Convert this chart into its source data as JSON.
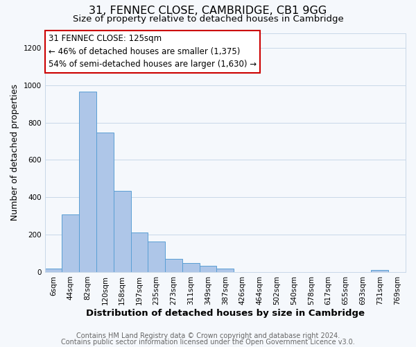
{
  "title": "31, FENNEC CLOSE, CAMBRIDGE, CB1 9GG",
  "subtitle": "Size of property relative to detached houses in Cambridge",
  "xlabel": "Distribution of detached houses by size in Cambridge",
  "ylabel": "Number of detached properties",
  "bin_labels": [
    "6sqm",
    "44sqm",
    "82sqm",
    "120sqm",
    "158sqm",
    "197sqm",
    "235sqm",
    "273sqm",
    "311sqm",
    "349sqm",
    "387sqm",
    "426sqm",
    "464sqm",
    "502sqm",
    "540sqm",
    "578sqm",
    "617sqm",
    "655sqm",
    "693sqm",
    "731sqm",
    "769sqm"
  ],
  "bar_heights": [
    20,
    310,
    965,
    745,
    435,
    212,
    163,
    72,
    47,
    32,
    17,
    0,
    0,
    0,
    0,
    0,
    0,
    0,
    0,
    10,
    0
  ],
  "bar_color": "#aec6e8",
  "bar_edge_color": "#5a9fd4",
  "annotation_line1": "31 FENNEC CLOSE: 125sqm",
  "annotation_line2": "← 46% of detached houses are smaller (1,375)",
  "annotation_line3": "54% of semi-detached houses are larger (1,630) →",
  "annotation_box_edge_color": "#cc0000",
  "annotation_box_bg_color": "#ffffff",
  "ylim": [
    0,
    1280
  ],
  "yticks": [
    0,
    200,
    400,
    600,
    800,
    1000,
    1200
  ],
  "footer_line1": "Contains HM Land Registry data © Crown copyright and database right 2024.",
  "footer_line2": "Contains public sector information licensed under the Open Government Licence v3.0.",
  "bg_color": "#f5f8fc",
  "grid_color": "#c8d8e8",
  "title_fontsize": 11.5,
  "subtitle_fontsize": 9.5,
  "xlabel_fontsize": 9.5,
  "ylabel_fontsize": 9,
  "tick_fontsize": 7.5,
  "annotation_fontsize": 8.5,
  "footer_fontsize": 7
}
